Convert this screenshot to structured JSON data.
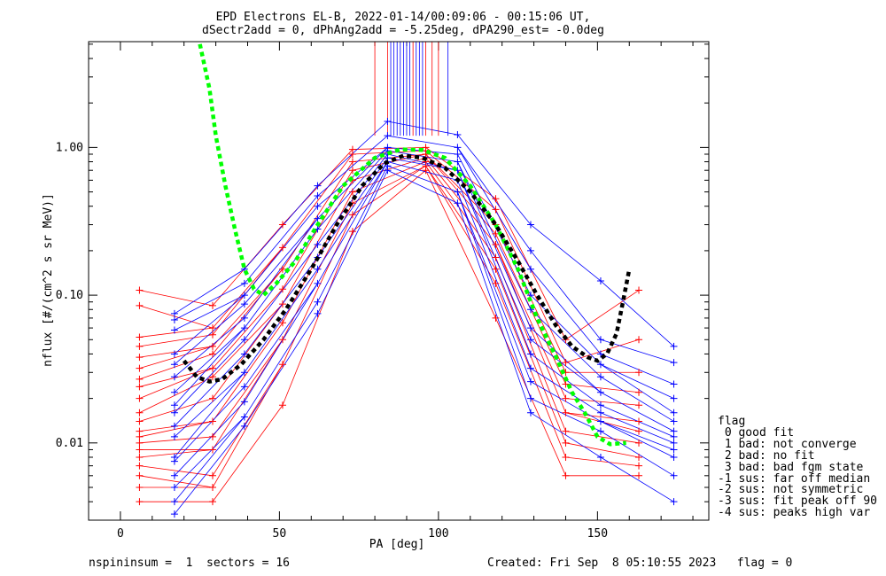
{
  "chart_data": {
    "type": "line",
    "title_line1": "EPD Electrons EL-B, 2022-01-14/00:09:06 - 00:15:06 UT,",
    "title_line2": "dSectr2add = 0, dPhAng2add = -5.25deg, dPA290_est=  -0.0deg",
    "xlabel": "PA [deg]",
    "ylabel": "nflux [#/(cm^2 s sr MeV)]",
    "xlim": [
      -10,
      185
    ],
    "ylim": [
      0.003,
      5.2
    ],
    "yscale": "log",
    "x_ticks": [
      0,
      50,
      100,
      150
    ],
    "x_tick_labels": [
      "0",
      "50",
      "100",
      "150"
    ],
    "y_ticks": [
      0.01,
      0.1,
      1.0
    ],
    "y_tick_labels": [
      "0.01",
      "0.10",
      "1.00"
    ],
    "series": [
      {
        "color": "#ff0000",
        "points": [
          [
            6,
            0.108
          ],
          [
            6,
            0.085
          ],
          [
            6,
            0.052
          ],
          [
            6,
            0.045
          ],
          [
            6,
            0.038
          ],
          [
            6,
            0.032
          ],
          [
            6,
            0.027
          ],
          [
            6,
            0.024
          ],
          [
            6,
            0.02
          ],
          [
            6,
            0.016
          ],
          [
            6,
            0.014
          ],
          [
            6,
            0.012
          ],
          [
            6,
            0.011
          ],
          [
            6,
            0.01
          ],
          [
            6,
            0.009
          ],
          [
            6,
            0.008
          ],
          [
            6,
            0.007
          ],
          [
            6,
            0.006
          ],
          [
            6,
            0.005
          ],
          [
            6,
            0.004
          ],
          [
            29,
            0.085
          ],
          [
            29,
            0.06
          ],
          [
            29,
            0.054
          ],
          [
            29,
            0.045
          ],
          [
            29,
            0.04
          ],
          [
            29,
            0.032
          ],
          [
            29,
            0.028
          ],
          [
            29,
            0.02
          ],
          [
            29,
            0.014
          ],
          [
            29,
            0.011
          ],
          [
            29,
            0.009
          ],
          [
            29,
            0.006
          ],
          [
            29,
            0.005
          ],
          [
            29,
            0.004
          ],
          [
            51,
            0.3
          ],
          [
            51,
            0.21
          ],
          [
            51,
            0.15
          ],
          [
            51,
            0.11
          ],
          [
            51,
            0.087
          ],
          [
            51,
            0.065
          ],
          [
            51,
            0.05
          ],
          [
            51,
            0.034
          ],
          [
            51,
            0.018
          ],
          [
            73,
            0.97
          ],
          [
            73,
            0.9
          ],
          [
            73,
            0.8
          ],
          [
            73,
            0.7
          ],
          [
            73,
            0.6
          ],
          [
            73,
            0.5
          ],
          [
            73,
            0.42
          ],
          [
            73,
            0.35
          ],
          [
            73,
            0.27
          ],
          [
            96,
            1.0
          ],
          [
            96,
            0.95
          ],
          [
            96,
            0.9
          ],
          [
            96,
            0.85
          ],
          [
            96,
            0.8
          ],
          [
            96,
            0.75
          ],
          [
            96,
            0.7
          ],
          [
            118,
            0.45
          ],
          [
            118,
            0.38
          ],
          [
            118,
            0.3
          ],
          [
            118,
            0.26
          ],
          [
            118,
            0.22
          ],
          [
            118,
            0.18
          ],
          [
            118,
            0.15
          ],
          [
            118,
            0.12
          ],
          [
            118,
            0.07
          ],
          [
            140,
            0.05
          ],
          [
            140,
            0.035
          ],
          [
            140,
            0.03
          ],
          [
            140,
            0.025
          ],
          [
            140,
            0.02
          ],
          [
            140,
            0.016
          ],
          [
            140,
            0.012
          ],
          [
            140,
            0.01
          ],
          [
            140,
            0.008
          ],
          [
            140,
            0.006
          ],
          [
            163,
            0.108
          ],
          [
            163,
            0.05
          ],
          [
            163,
            0.03
          ],
          [
            163,
            0.022
          ],
          [
            163,
            0.018
          ],
          [
            163,
            0.014
          ],
          [
            163,
            0.012
          ],
          [
            163,
            0.01
          ],
          [
            163,
            0.008
          ],
          [
            163,
            0.007
          ],
          [
            163,
            0.006
          ]
        ]
      },
      {
        "color": "#0000ff",
        "points": [
          [
            17,
            0.075
          ],
          [
            17,
            0.068
          ],
          [
            17,
            0.058
          ],
          [
            17,
            0.04
          ],
          [
            17,
            0.034
          ],
          [
            17,
            0.028
          ],
          [
            17,
            0.022
          ],
          [
            17,
            0.018
          ],
          [
            17,
            0.016
          ],
          [
            17,
            0.013
          ],
          [
            17,
            0.011
          ],
          [
            17,
            0.008
          ],
          [
            17,
            0.0075
          ],
          [
            17,
            0.006
          ],
          [
            17,
            0.005
          ],
          [
            17,
            0.004
          ],
          [
            17,
            0.0033
          ],
          [
            39,
            0.15
          ],
          [
            39,
            0.12
          ],
          [
            39,
            0.1
          ],
          [
            39,
            0.087
          ],
          [
            39,
            0.07
          ],
          [
            39,
            0.06
          ],
          [
            39,
            0.05
          ],
          [
            39,
            0.04
          ],
          [
            39,
            0.03
          ],
          [
            39,
            0.024
          ],
          [
            39,
            0.019
          ],
          [
            39,
            0.015
          ],
          [
            39,
            0.013
          ],
          [
            62,
            0.55
          ],
          [
            62,
            0.47
          ],
          [
            62,
            0.4
          ],
          [
            62,
            0.33
          ],
          [
            62,
            0.28
          ],
          [
            62,
            0.22
          ],
          [
            62,
            0.18
          ],
          [
            62,
            0.15
          ],
          [
            62,
            0.12
          ],
          [
            62,
            0.09
          ],
          [
            62,
            0.075
          ],
          [
            84,
            1.5
          ],
          [
            84,
            1.2
          ],
          [
            84,
            1.0
          ],
          [
            84,
            0.95
          ],
          [
            84,
            0.9
          ],
          [
            84,
            0.85
          ],
          [
            84,
            0.8
          ],
          [
            84,
            0.75
          ],
          [
            84,
            0.7
          ],
          [
            106,
            1.22
          ],
          [
            106,
            1.0
          ],
          [
            106,
            0.9
          ],
          [
            106,
            0.8
          ],
          [
            106,
            0.7
          ],
          [
            106,
            0.6
          ],
          [
            106,
            0.5
          ],
          [
            106,
            0.42
          ],
          [
            129,
            0.3
          ],
          [
            129,
            0.2
          ],
          [
            129,
            0.15
          ],
          [
            129,
            0.1
          ],
          [
            129,
            0.08
          ],
          [
            129,
            0.06
          ],
          [
            129,
            0.05
          ],
          [
            129,
            0.04
          ],
          [
            129,
            0.032
          ],
          [
            129,
            0.026
          ],
          [
            129,
            0.02
          ],
          [
            129,
            0.016
          ],
          [
            151,
            0.125
          ],
          [
            151,
            0.05
          ],
          [
            151,
            0.04
          ],
          [
            151,
            0.034
          ],
          [
            151,
            0.028
          ],
          [
            151,
            0.022
          ],
          [
            151,
            0.018
          ],
          [
            151,
            0.016
          ],
          [
            151,
            0.014
          ],
          [
            151,
            0.012
          ],
          [
            151,
            0.008
          ],
          [
            174,
            0.045
          ],
          [
            174,
            0.035
          ],
          [
            174,
            0.025
          ],
          [
            174,
            0.02
          ],
          [
            174,
            0.016
          ],
          [
            174,
            0.014
          ],
          [
            174,
            0.012
          ],
          [
            174,
            0.011
          ],
          [
            174,
            0.01
          ],
          [
            174,
            0.009
          ],
          [
            174,
            0.008
          ],
          [
            174,
            0.006
          ],
          [
            174,
            0.004
          ]
        ]
      },
      {
        "color": "#00ff00",
        "points": [
          [
            25,
            5.0
          ],
          [
            28,
            2.5
          ],
          [
            30,
            1.2
          ],
          [
            33,
            0.55
          ],
          [
            36,
            0.28
          ],
          [
            39,
            0.15
          ],
          [
            42,
            0.11
          ],
          [
            45,
            0.1
          ],
          [
            49,
            0.12
          ],
          [
            55,
            0.17
          ],
          [
            62,
            0.3
          ],
          [
            70,
            0.55
          ],
          [
            80,
            0.85
          ],
          [
            88,
            0.97
          ],
          [
            95,
            0.96
          ],
          [
            102,
            0.85
          ],
          [
            110,
            0.55
          ],
          [
            118,
            0.3
          ],
          [
            125,
            0.15
          ],
          [
            131,
            0.07
          ],
          [
            137,
            0.038
          ],
          [
            142,
            0.022
          ],
          [
            146,
            0.016
          ],
          [
            150,
            0.011
          ],
          [
            154,
            0.0098
          ],
          [
            159,
            0.01
          ]
        ]
      },
      {
        "color": "#000000",
        "points": [
          [
            20,
            0.036
          ],
          [
            24,
            0.028
          ],
          [
            28,
            0.026
          ],
          [
            32,
            0.027
          ],
          [
            38,
            0.034
          ],
          [
            45,
            0.05
          ],
          [
            52,
            0.08
          ],
          [
            60,
            0.15
          ],
          [
            68,
            0.3
          ],
          [
            76,
            0.55
          ],
          [
            83,
            0.78
          ],
          [
            89,
            0.88
          ],
          [
            95,
            0.85
          ],
          [
            102,
            0.73
          ],
          [
            110,
            0.5
          ],
          [
            118,
            0.3
          ],
          [
            125,
            0.17
          ],
          [
            131,
            0.1
          ],
          [
            137,
            0.062
          ],
          [
            142,
            0.045
          ],
          [
            147,
            0.038
          ],
          [
            150,
            0.036
          ],
          [
            153,
            0.04
          ],
          [
            156,
            0.055
          ],
          [
            158,
            0.09
          ],
          [
            160,
            0.15
          ]
        ]
      }
    ],
    "legend_title": "flag",
    "legend": [
      " 0 good fit",
      " 1 bad: not converge",
      " 2 bad: no fit",
      " 3 bad: bad fgm state",
      "-1 sus: far off median",
      "-2 sus: not symmetric",
      "-3 sus: fit peak off 90",
      "-4 sus: peaks high var"
    ]
  },
  "footer": {
    "left": "nspininsum =  1  sectors = 16",
    "right": "Created: Fri Sep  8 05:10:55 2023   flag = 0"
  }
}
